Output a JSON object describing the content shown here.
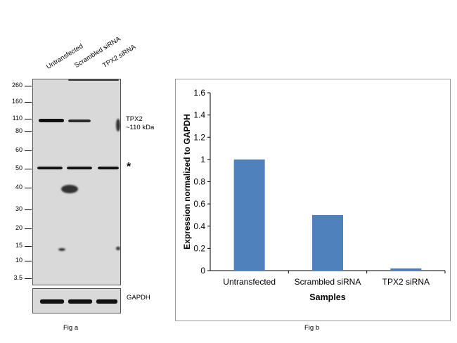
{
  "fig_a": {
    "lanes": [
      "Untransfected",
      "Scrambled siRNA",
      "TPX2  siRNA"
    ],
    "mw_markers": [
      "260",
      "160",
      "110",
      "80",
      "60",
      "50",
      "40",
      "30",
      "20",
      "15",
      "10",
      "3.5"
    ],
    "band_label_line1": "TPX2",
    "band_label_line2": "~110 kDa",
    "asterisk": "*",
    "loading_control": "GAPDH",
    "caption": "Fig a"
  },
  "fig_b": {
    "caption": "Fig b"
  },
  "chart_data": {
    "type": "bar",
    "categories": [
      "Untransfected",
      "Scrambled siRNA",
      "TPX2 siRNA"
    ],
    "values": [
      1.0,
      0.5,
      0.02
    ],
    "title": "",
    "xlabel": "Samples",
    "ylabel": "Expression normalized to GAPDH",
    "ylim": [
      0,
      1.6
    ],
    "yticks": [
      "0",
      "0.2",
      "0.4",
      "0.6",
      "0.8",
      "1",
      "1.2",
      "1.4",
      "1.6"
    ],
    "bar_color": "#4f81bd",
    "grid": false,
    "legend": "none"
  }
}
